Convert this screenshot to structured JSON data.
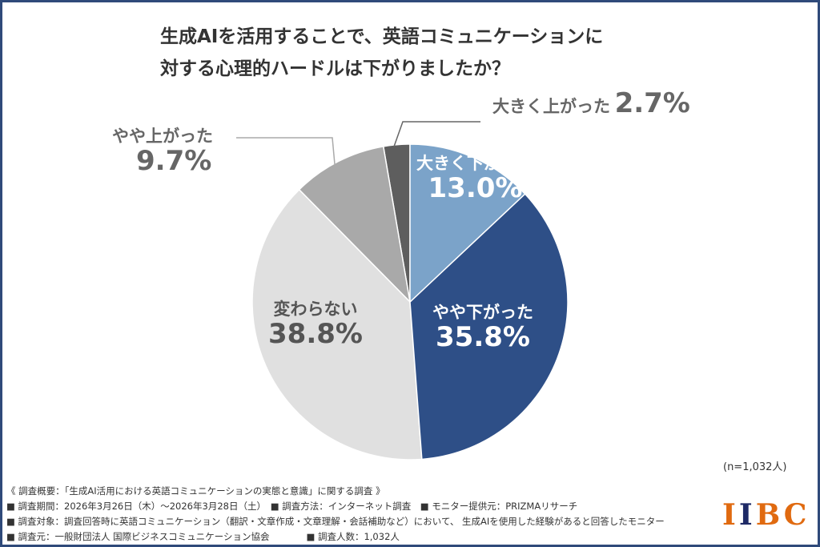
{
  "chart_data": {
    "type": "pie",
    "title": "生成AIを活用することで、英語コミュニケーションに 対する心理的ハードルは下がりましたか？",
    "title_lines": [
      "生成AIを活用することで、英語コミュニケーションに",
      "対する心理的ハードルは下がりましたか？"
    ],
    "slices": [
      {
        "label": "大きく下がった",
        "value": 13.0,
        "display": "13.0%",
        "color": "#7ba3c9"
      },
      {
        "label": "やや下がった",
        "value": 35.8,
        "display": "35.8%",
        "color": "#2e4f87"
      },
      {
        "label": "変わらない",
        "value": 38.8,
        "display": "38.8%",
        "color": "#e0e0e0"
      },
      {
        "label": "やや上がった",
        "value": 9.7,
        "display": "9.7%",
        "color": "#a9a9a9"
      },
      {
        "label": "大きく上がった",
        "value": 2.7,
        "display": "2.7%",
        "color": "#5e5e5e"
      }
    ],
    "start": "top",
    "direction": "clockwise"
  },
  "sample_size": "(n=1,032人)",
  "notes": [
    "《 調査概要：「生成AI活用における英語コミュニケーションの実態と意識」に関する調査 》",
    "■ 調査期間：2026年3月26日（木）～2026年3月28日（土）　■ 調査方法：インターネット調査　■ モニター提供元：PRIZMAリサーチ",
    "■ 調査対象：調査回答時に英語コミュニケーション（翻訳・文章作成・文章理解・会話補助など）において、 生成AIを使用した経験があると回答したモニター",
    "■ 調査元：一般財団法人 国際ビジネスコミュニケーション協会　　　　■ 調査人数：1,032人"
  ],
  "logo": {
    "text": "IIBC",
    "colors": {
      "primary": "#e06a10",
      "secondary": "#1e2a66"
    }
  }
}
